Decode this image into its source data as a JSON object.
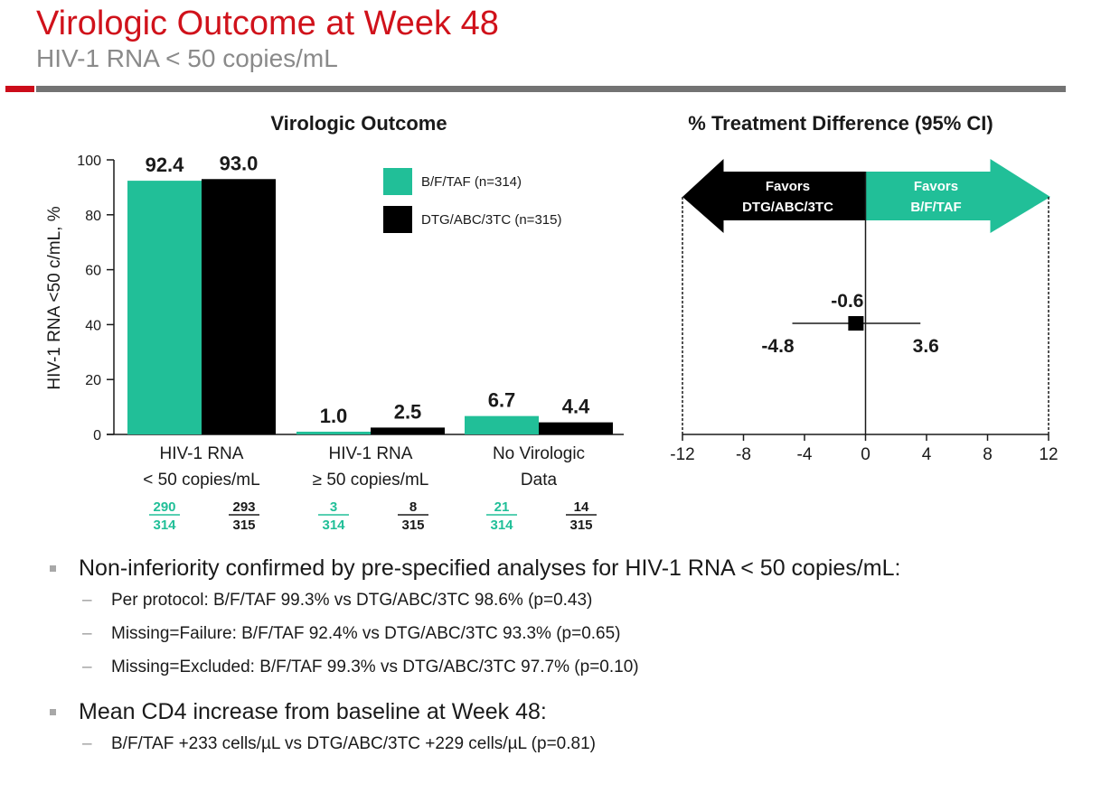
{
  "header": {
    "title": "Virologic Outcome at Week 48",
    "subtitle": "HIV-1 RNA < 50 copies/mL"
  },
  "colors": {
    "accent_red": "#d0121b",
    "bftaf": "#21bf98",
    "dtg": "#000000",
    "rule_gray": "#737373"
  },
  "chart_data": [
    {
      "type": "bar",
      "title": "Virologic Outcome",
      "ylabel": "HIV-1 RNA <50 c/mL, %",
      "xlabel": "",
      "ylim": [
        0,
        100
      ],
      "yticks": [
        "0",
        "20",
        "40",
        "60",
        "80",
        "100"
      ],
      "categories": [
        [
          "HIV-1 RNA",
          "< 50 copies/mL"
        ],
        [
          "HIV-1 RNA",
          "≥ 50 copies/mL"
        ],
        [
          "No Virologic",
          "Data"
        ]
      ],
      "series": [
        {
          "name": "B/F/TAF (n=314)",
          "color": "#21bf98",
          "values": [
            92.4,
            1.0,
            6.7
          ],
          "labels": [
            "92.4",
            "1.0",
            "6.7"
          ],
          "counts": [
            [
              "290",
              "314"
            ],
            [
              "3",
              "314"
            ],
            [
              "21",
              "314"
            ]
          ]
        },
        {
          "name": "DTG/ABC/3TC (n=315)",
          "color": "#000000",
          "values": [
            93.0,
            2.5,
            4.4
          ],
          "labels": [
            "93.0",
            "2.5",
            "4.4"
          ],
          "counts": [
            [
              "293",
              "315"
            ],
            [
              "8",
              "315"
            ],
            [
              "14",
              "315"
            ]
          ]
        }
      ],
      "legend": "top-right"
    },
    {
      "type": "forest",
      "title": "% Treatment Difference (95% CI)",
      "xlim": [
        -12,
        12
      ],
      "xticks": [
        "-12",
        "-8",
        "-4",
        "0",
        "4",
        "8",
        "12"
      ],
      "point": {
        "estimate": -0.6,
        "lower": -4.8,
        "upper": 3.6,
        "estimate_label": "-0.6",
        "lower_label": "-4.8",
        "upper_label": "3.6"
      },
      "arrows": {
        "left": {
          "line1": "Favors",
          "line2": "DTG/ABC/3TC",
          "color": "#000000"
        },
        "right": {
          "line1": "Favors",
          "line2": "B/F/TAF",
          "color": "#21bf98"
        }
      }
    }
  ],
  "bullets": [
    {
      "text": "Non-inferiority confirmed by pre-specified analyses for HIV-1 RNA < 50 copies/mL:",
      "sub": [
        "Per protocol:  B/F/TAF 99.3% vs DTG/ABC/3TC 98.6% (p=0.43)",
        "Missing=Failure:  B/F/TAF 92.4% vs DTG/ABC/3TC 93.3% (p=0.65)",
        "Missing=Excluded:  B/F/TAF 99.3% vs DTG/ABC/3TC 97.7% (p=0.10)"
      ]
    },
    {
      "text": "Mean CD4 increase from baseline at Week 48:",
      "sub": [
        "B/F/TAF +233 cells/µL vs DTG/ABC/3TC +229 cells/µL (p=0.81)"
      ]
    }
  ]
}
